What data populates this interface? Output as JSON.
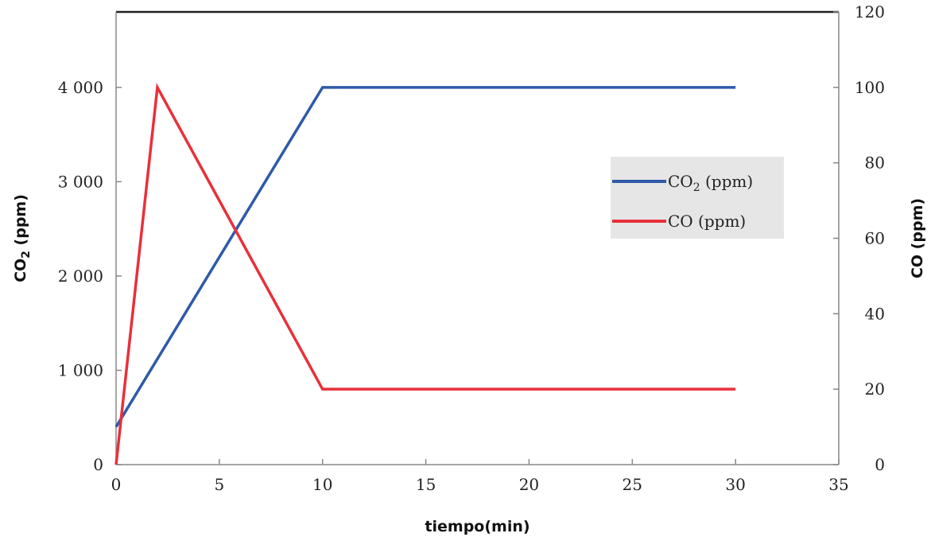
{
  "chart_data": {
    "type": "line",
    "title": "",
    "x": [
      0,
      2,
      10,
      30
    ],
    "xlabel": "tiempo(min)",
    "xlim": [
      0,
      35
    ],
    "xticks": [
      0,
      5,
      10,
      15,
      20,
      25,
      30,
      35
    ],
    "ylabel_left": {
      "base": "CO",
      "sub": "2",
      "rest": " (ppm)"
    },
    "ylim_left": [
      0,
      4800
    ],
    "yticks_left": [
      0,
      1000,
      2000,
      3000,
      4000
    ],
    "yticks_left_labels": [
      "0",
      "1 000",
      "2 000",
      "3 000",
      "4 000"
    ],
    "ylabel_right": "CO (ppm)",
    "ylim_right": [
      0,
      120
    ],
    "yticks_right": [
      0,
      20,
      40,
      60,
      80,
      100,
      120
    ],
    "series": [
      {
        "name": "CO2 (ppm)",
        "legend_base": "CO",
        "legend_sub": "2",
        "legend_rest": " (ppm)",
        "axis": "left",
        "color": "#2e5aa8",
        "points": [
          [
            0,
            400
          ],
          [
            10,
            4000
          ],
          [
            30,
            4000
          ]
        ]
      },
      {
        "name": "CO (ppm)",
        "legend_base": "CO (ppm)",
        "legend_sub": "",
        "legend_rest": "",
        "axis": "right",
        "color": "#e8303a",
        "points": [
          [
            0,
            0
          ],
          [
            2,
            100
          ],
          [
            10,
            20
          ],
          [
            30,
            20
          ]
        ]
      }
    ],
    "grid": false,
    "legend_position": "right-center",
    "legend_background": "#e6e6e6"
  }
}
